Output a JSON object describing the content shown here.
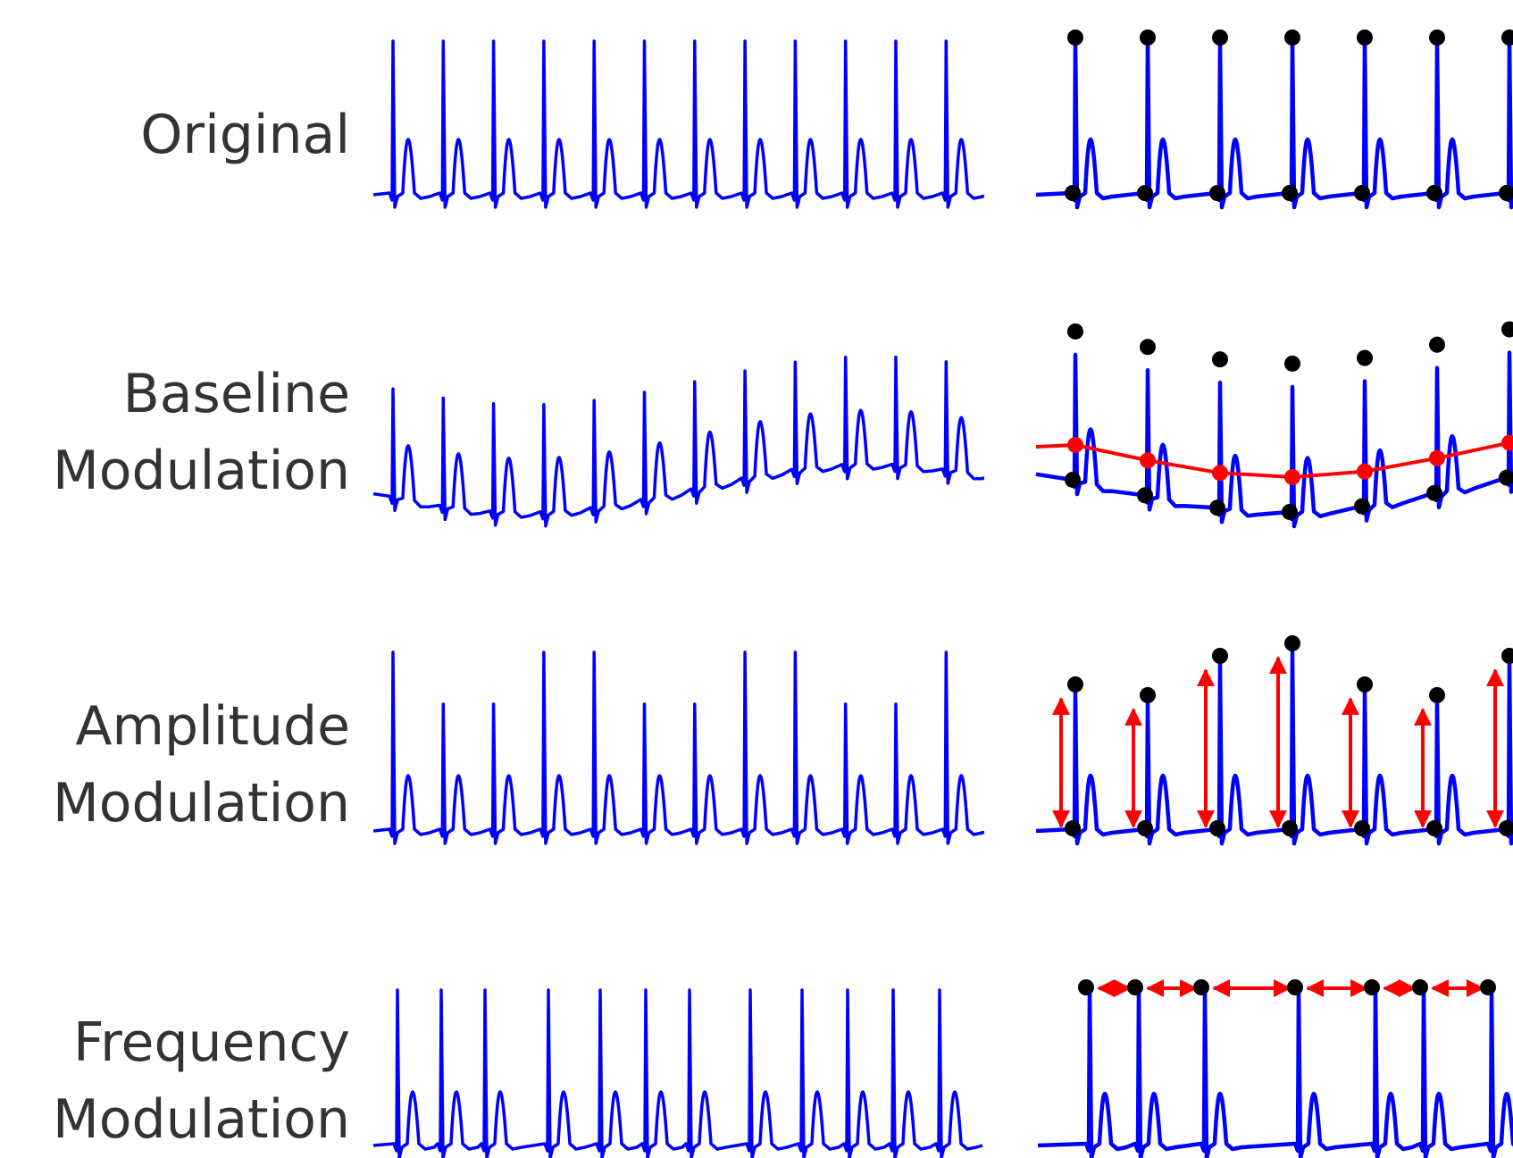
{
  "colors": {
    "ecg": "#0000ff",
    "marker": "#000000",
    "annotation": "#ff0000",
    "label": "#333333"
  },
  "rows": [
    {
      "id": "original",
      "label_lines": [
        "Original"
      ]
    },
    {
      "id": "baseline",
      "label_lines": [
        "Baseline",
        "Modulation"
      ]
    },
    {
      "id": "amplitude",
      "label_lines": [
        "Amplitude",
        "Modulation"
      ]
    },
    {
      "id": "frequency",
      "label_lines": [
        "Frequency",
        "Modulation"
      ]
    }
  ]
}
